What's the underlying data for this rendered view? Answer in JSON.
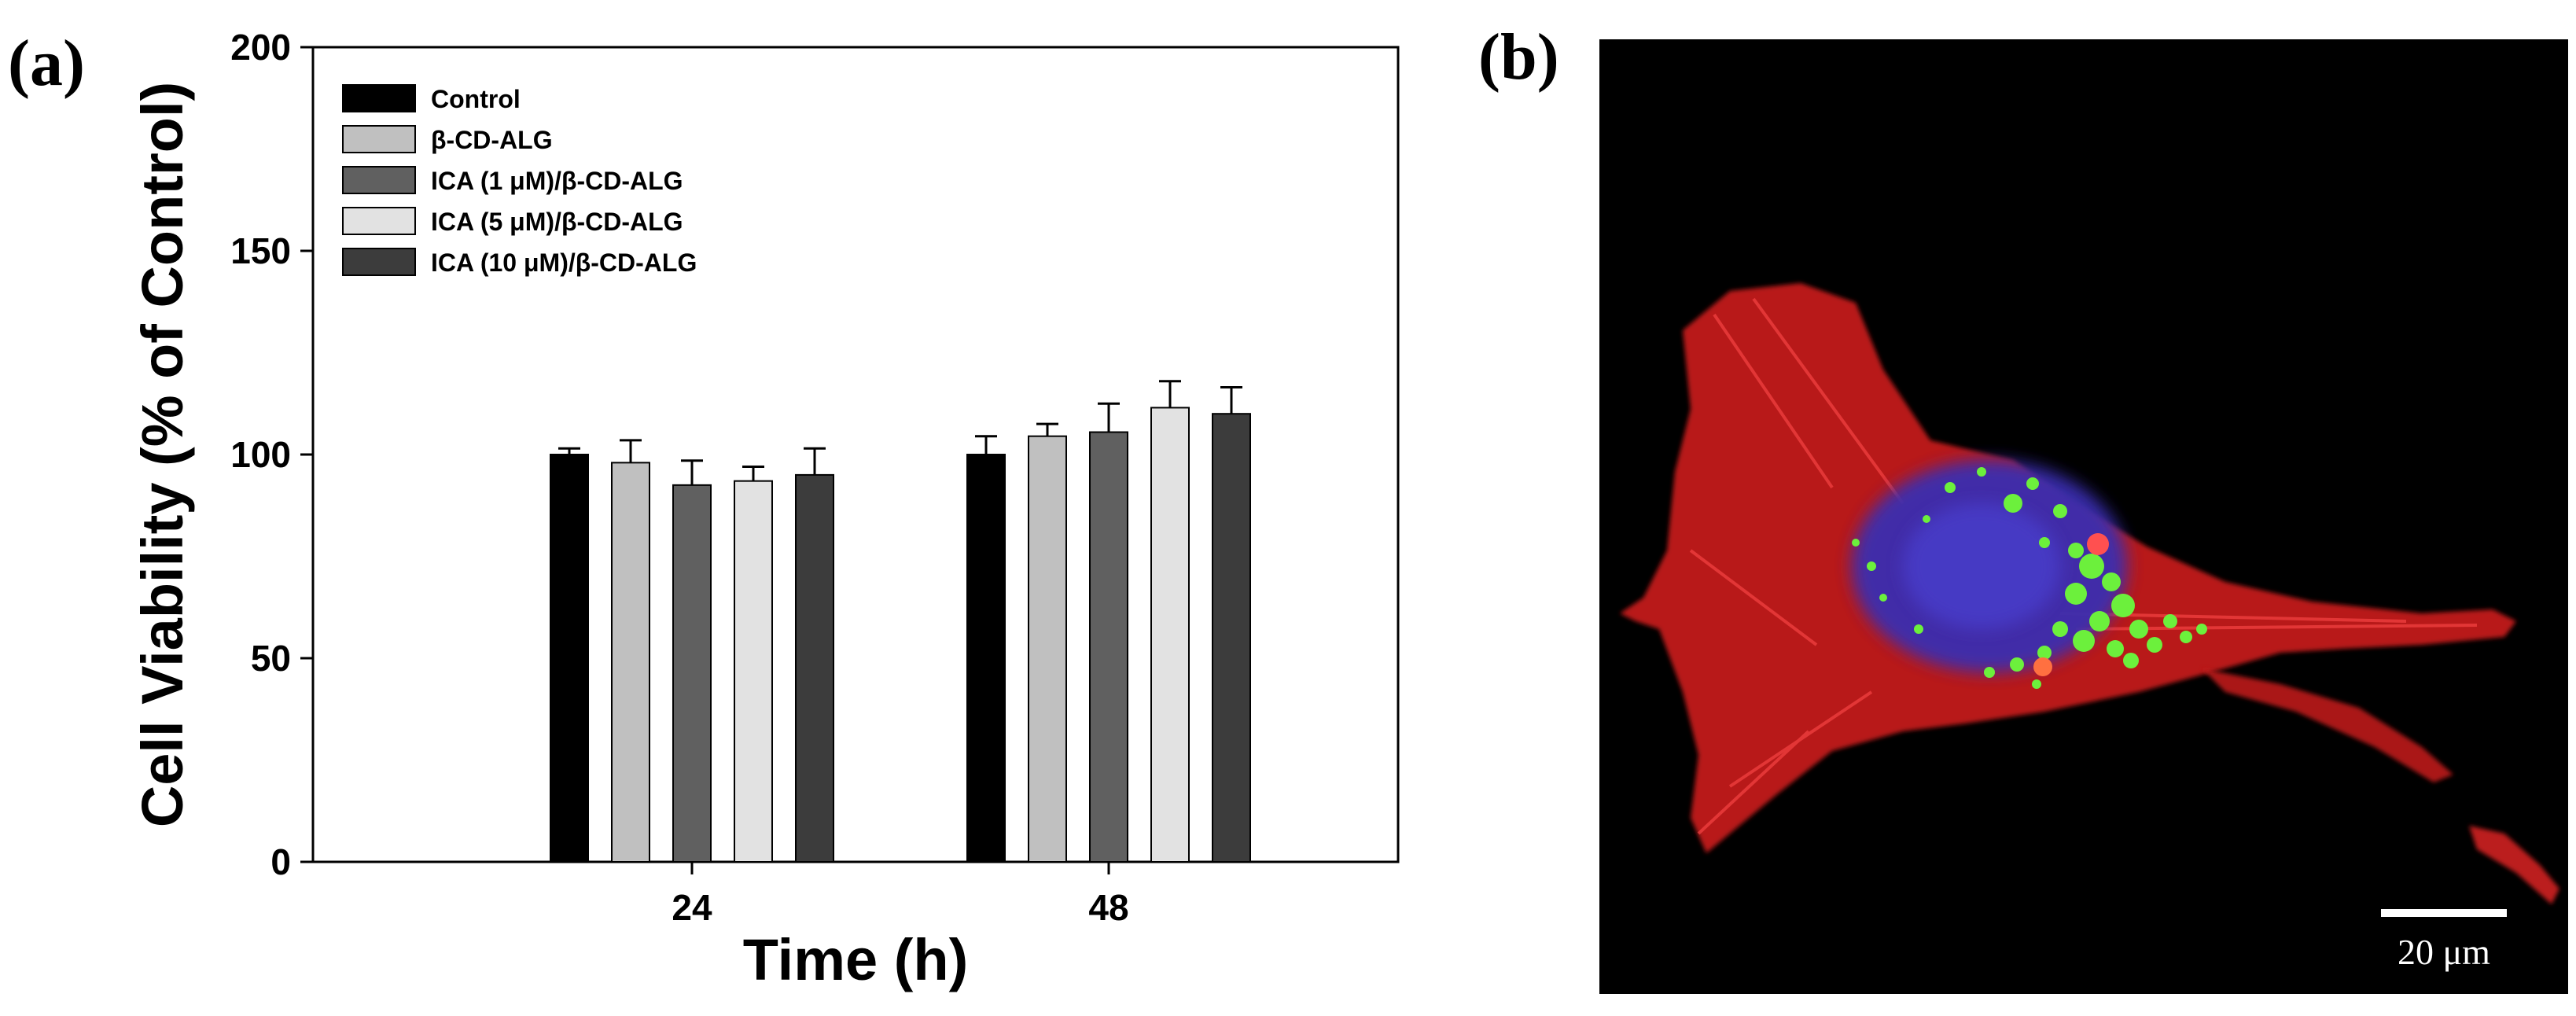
{
  "panel_a_label": "(a)",
  "panel_b_label": "(b)",
  "scale_bar_label": "20 μm",
  "colors": {
    "Control": "#000000",
    "β-CD-ALG": "#c0c0c0",
    "ICA (1 μM)/β-CD-ALG": "#606060",
    "ICA (5 μM)/β-CD-ALG": "#e2e2e2",
    "ICA (10 μM)/β-CD-ALG": "#3c3c3c",
    "micrograph_background": "#000000",
    "cytoskeleton": "#d42020",
    "nucleus": "#3a2fb0",
    "particles": "#6cf03c"
  },
  "chart_data": {
    "type": "bar",
    "categories": [
      "24",
      "48"
    ],
    "xlabel": "Time (h)",
    "ylabel": "Cell Viability (% of Control)",
    "ylim": [
      0,
      200
    ],
    "yticks": [
      0,
      50,
      100,
      150,
      200
    ],
    "legend_position": "top-left",
    "grid": false,
    "series": [
      {
        "name": "Control",
        "values": [
          100,
          100
        ],
        "errors": [
          1.5,
          4.5
        ]
      },
      {
        "name": "β-CD-ALG",
        "values": [
          98,
          104.5
        ],
        "errors": [
          5.5,
          3
        ]
      },
      {
        "name": "ICA (1 μM)/β-CD-ALG",
        "values": [
          92.5,
          105.5
        ],
        "errors": [
          6,
          7
        ]
      },
      {
        "name": "ICA (5 μM)/β-CD-ALG",
        "values": [
          93.5,
          111.5
        ],
        "errors": [
          3.5,
          6.5
        ]
      },
      {
        "name": "ICA (10 μM)/β-CD-ALG",
        "values": [
          95,
          110
        ],
        "errors": [
          6.5,
          6.5
        ]
      }
    ]
  }
}
